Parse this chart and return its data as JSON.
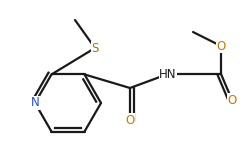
{
  "bg_color": "#ffffff",
  "bond_color": "#1a1a1a",
  "atom_colors": {
    "N": "#1e4de0",
    "O": "#cc7700",
    "S": "#9a7c00"
  },
  "figsize": [
    2.52,
    1.55
  ],
  "dpi": 100,
  "lw": 1.6
}
